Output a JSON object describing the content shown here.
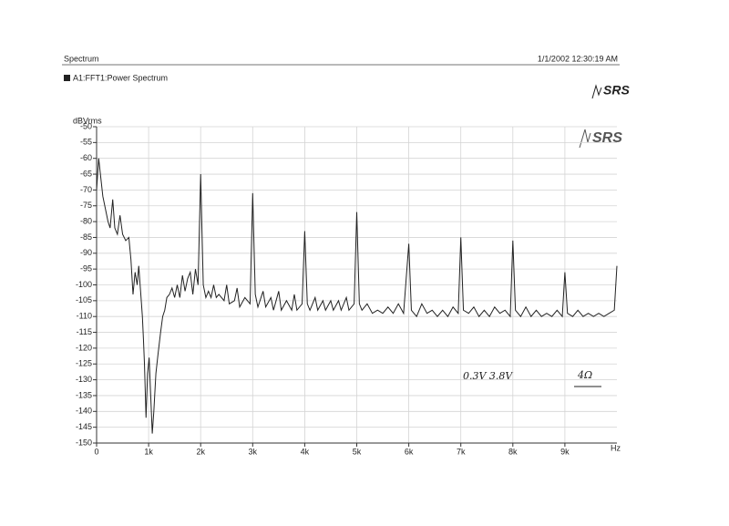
{
  "chart_data": {
    "type": "line",
    "title": "Spectrum",
    "timestamp": "1/1/2002 12:30:19 AM",
    "logos": [
      "SRS",
      "SRS"
    ],
    "ylabel": "dBVrms",
    "xlabel": "Hz",
    "annotations": [
      "0.3V 3.8V",
      "4Ω"
    ],
    "xlim": [
      0,
      10000
    ],
    "ylim": [
      -150,
      -50
    ],
    "xticks": [
      0,
      {
        "value": 1000,
        "label": "1k"
      },
      {
        "value": 2000,
        "label": "2k"
      },
      {
        "value": 3000,
        "label": "3k"
      },
      {
        "value": 4000,
        "label": "4k"
      },
      {
        "value": 5000,
        "label": "5k"
      },
      {
        "value": 6000,
        "label": "6k"
      },
      {
        "value": 7000,
        "label": "7k"
      },
      {
        "value": 8000,
        "label": "8k"
      },
      {
        "value": 9000,
        "label": "9k"
      }
    ],
    "yticks": [
      -50,
      -55,
      -60,
      -65,
      -70,
      -75,
      -80,
      -85,
      -90,
      -95,
      -100,
      -105,
      -110,
      -115,
      -120,
      -125,
      -130,
      -135,
      -140,
      -145,
      -150
    ],
    "grid": true,
    "x": [
      0,
      40,
      80,
      120,
      170,
      220,
      260,
      310,
      350,
      400,
      450,
      500,
      560,
      620,
      660,
      700,
      740,
      780,
      810,
      850,
      880,
      900,
      920,
      950,
      980,
      1010,
      1040,
      1070,
      1100,
      1140,
      1180,
      1230,
      1270,
      1310,
      1350,
      1400,
      1450,
      1500,
      1550,
      1600,
      1650,
      1700,
      1750,
      1800,
      1850,
      1900,
      1950,
      2000,
      2050,
      2100,
      2150,
      2200,
      2250,
      2300,
      2350,
      2450,
      2500,
      2550,
      2650,
      2700,
      2750,
      2850,
      2950,
      3000,
      3050,
      3100,
      3200,
      3250,
      3350,
      3400,
      3500,
      3550,
      3650,
      3750,
      3800,
      3850,
      3950,
      4000,
      4050,
      4100,
      4200,
      4250,
      4350,
      4400,
      4500,
      4550,
      4650,
      4700,
      4800,
      4850,
      4950,
      5000,
      5050,
      5100,
      5200,
      5300,
      5400,
      5500,
      5600,
      5700,
      5800,
      5900,
      6000,
      6050,
      6150,
      6250,
      6350,
      6450,
      6550,
      6650,
      6750,
      6850,
      6950,
      7000,
      7050,
      7150,
      7250,
      7350,
      7450,
      7550,
      7650,
      7750,
      7850,
      7950,
      8000,
      8050,
      8150,
      8250,
      8350,
      8450,
      8550,
      8650,
      8750,
      8850,
      8950,
      9000,
      9050,
      9150,
      9250,
      9350,
      9450,
      9550,
      9650,
      9750,
      9850,
      9950,
      10000
    ],
    "series": [
      {
        "name": "A1:FFT1:Power Spectrum",
        "color": "#222222",
        "values": [
          -70,
          -60,
          -66,
          -72,
          -76,
          -80,
          -82,
          -73,
          -82,
          -84,
          -78,
          -84,
          -86,
          -85,
          -92,
          -103,
          -96,
          -100,
          -94,
          -103,
          -110,
          -117,
          -125,
          -142,
          -128,
          -123,
          -135,
          -147,
          -140,
          -128,
          -122,
          -115,
          -110,
          -108,
          -104,
          -103,
          -101,
          -104,
          -100,
          -104,
          -97,
          -102,
          -98,
          -96,
          -103,
          -95,
          -100,
          -65,
          -100,
          -104,
          -102,
          -104,
          -100,
          -104,
          -103,
          -105,
          -100,
          -106,
          -105,
          -101,
          -107,
          -104,
          -106,
          -71,
          -103,
          -107,
          -102,
          -107,
          -104,
          -108,
          -102,
          -108,
          -105,
          -108,
          -103,
          -108,
          -106,
          -83,
          -106,
          -108,
          -104,
          -108,
          -105,
          -108,
          -105,
          -108,
          -105,
          -108,
          -104,
          -108,
          -106,
          -77,
          -106,
          -108,
          -106,
          -109,
          -108,
          -109,
          -107,
          -109,
          -106,
          -109,
          -87,
          -108,
          -110,
          -106,
          -109,
          -108,
          -110,
          -108,
          -110,
          -107,
          -109,
          -85,
          -108,
          -109,
          -107,
          -110,
          -108,
          -110,
          -107,
          -109,
          -108,
          -110,
          -86,
          -108,
          -110,
          -107,
          -110,
          -108,
          -110,
          -109,
          -110,
          -108,
          -110,
          -96,
          -109,
          -110,
          -108,
          -110,
          -109,
          -110,
          -109,
          -110,
          -109,
          -108,
          -94
        ]
      }
    ]
  }
}
